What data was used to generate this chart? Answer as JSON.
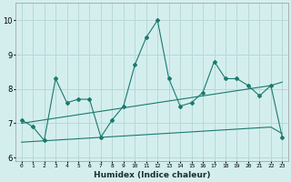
{
  "xlabel": "Humidex (Indice chaleur)",
  "bg_color": "#d4eeee",
  "grid_color": "#b8d8d8",
  "line_color": "#1a7a6e",
  "x_data": [
    0,
    1,
    2,
    3,
    4,
    5,
    6,
    7,
    8,
    9,
    10,
    11,
    12,
    13,
    14,
    15,
    16,
    17,
    18,
    19,
    20,
    21,
    22,
    23
  ],
  "y_main": [
    7.1,
    6.9,
    6.5,
    8.3,
    7.6,
    7.7,
    7.7,
    6.6,
    7.1,
    7.5,
    8.7,
    9.5,
    10.0,
    8.3,
    7.5,
    7.6,
    7.9,
    8.8,
    8.3,
    8.3,
    8.1,
    7.8,
    8.1,
    6.6
  ],
  "y_upper": [
    7.0,
    7.05,
    7.1,
    7.15,
    7.2,
    7.25,
    7.3,
    7.35,
    7.4,
    7.45,
    7.5,
    7.55,
    7.6,
    7.65,
    7.7,
    7.75,
    7.8,
    7.85,
    7.9,
    7.95,
    8.0,
    8.05,
    8.1,
    8.2
  ],
  "y_lower": [
    6.45,
    6.47,
    6.49,
    6.51,
    6.53,
    6.55,
    6.57,
    6.59,
    6.61,
    6.63,
    6.65,
    6.67,
    6.69,
    6.71,
    6.73,
    6.75,
    6.77,
    6.79,
    6.81,
    6.83,
    6.85,
    6.87,
    6.89,
    6.7
  ],
  "ylim": [
    5.9,
    10.5
  ],
  "yticks": [
    6,
    7,
    8,
    9,
    10
  ],
  "xlim": [
    -0.5,
    23.5
  ],
  "xtick_labels": [
    "0",
    "1",
    "2",
    "3",
    "4",
    "5",
    "6",
    "7",
    "8",
    "9",
    "10",
    "11",
    "12",
    "13",
    "14",
    "15",
    "16",
    "17",
    "18",
    "19",
    "20",
    "21",
    "22",
    "23"
  ]
}
